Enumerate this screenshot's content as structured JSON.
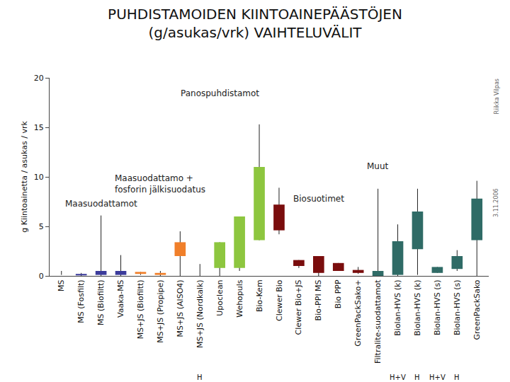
{
  "chart_data": {
    "type": "range_box",
    "title": "PUHDISTAMOIDEN KIINTOAINEPÄÄSTÖJEN\n(g/asukas/vrk) VAIHTELUVÄLIT",
    "y_label": "g Kiintoainetta / asukas / vrk",
    "categories": [
      "MS",
      "MS (Fosfilt)",
      "MS (Biofiltt)",
      "Vaaka-MS",
      "MS+JS (Biofiltt)",
      "MS+JS (Propipe)",
      "MS+JS (AlSO4)",
      "MS+JS (Nordkalk)",
      "Upoclean",
      "Wehopuls",
      "Bio-Kem",
      "Clewer Bio",
      "Clewer Bio+JS",
      "Bio-PPI MS",
      "Bio PPP",
      "GreenPackSako+",
      "Filtralite-suodattamot",
      "Biolan-HVS (k)",
      "Biolan-HVS (k)",
      "Biolan-HVS (s)",
      "Biolan-HVS (s)",
      "GreenPackSako"
    ],
    "notes": [
      null,
      null,
      null,
      null,
      null,
      null,
      null,
      "H",
      null,
      null,
      null,
      null,
      null,
      null,
      null,
      null,
      null,
      "H+V",
      "H",
      "H+V",
      "H",
      null
    ],
    "whisker_low": [
      0.1,
      0,
      0,
      0,
      0.1,
      0,
      0,
      0,
      0,
      0.5,
      3.6,
      4.2,
      0.8,
      0,
      0.5,
      0.2,
      0,
      0,
      0.1,
      0.3,
      0.5,
      0
    ],
    "whisker_high": [
      0.5,
      0.3,
      6.1,
      2.1,
      0.4,
      0.5,
      4.5,
      1.2,
      3.4,
      6,
      15.3,
      8.9,
      1.6,
      2,
      1.3,
      0.9,
      8.8,
      5.2,
      8.8,
      0.9,
      2.6,
      9.6
    ],
    "box_low": [
      null,
      0.05,
      0.1,
      0.1,
      0.2,
      0.1,
      2,
      null,
      0.8,
      0.8,
      3.6,
      4.6,
      1,
      0.3,
      0.5,
      0.3,
      0,
      0.1,
      2.7,
      0.3,
      0.7,
      3.6
    ],
    "box_high": [
      null,
      0.2,
      0.5,
      0.5,
      0.4,
      0.3,
      3.4,
      null,
      3.4,
      6,
      11,
      7.2,
      1.6,
      2,
      1.3,
      0.6,
      0.5,
      3.5,
      6.5,
      0.9,
      2,
      7.8
    ],
    "colors": [
      "#3b3b9b",
      "#3b3b9b",
      "#3b3b9b",
      "#3b3b9b",
      "#f07f2a",
      "#f07f2a",
      "#f07f2a",
      "#f07f2a",
      "#8dc63f",
      "#8dc63f",
      "#8dc63f",
      "#7a0d0d",
      "#7a0d0d",
      "#7a0d0d",
      "#7a0d0d",
      "#7a0d0d",
      "#2f6b66",
      "#2f6b66",
      "#2f6b66",
      "#2f6b66",
      "#2f6b66",
      "#2f6b66"
    ],
    "annotations": [
      {
        "text": "Maasuodattamot",
        "category": "MS (Biofiltt)",
        "y": 7.3
      },
      {
        "text": "Maasuodattamo +\nfosforin jälkisuodatus",
        "category": "MS+JS (Propipe)",
        "y": 9.3
      },
      {
        "text": "Panospuhdistamot",
        "category": "Upoclean",
        "y": 18.4
      },
      {
        "text": "Biosuotimet",
        "category": "Bio-PPI MS",
        "y": 7.8
      },
      {
        "text": "Muut",
        "category": "Filtralite-suodattamot",
        "y": 11.1
      }
    ],
    "side_notes": [
      "Riikka Vilpas",
      "3.11.2006"
    ],
    "ylim": [
      0,
      20
    ],
    "yticks": [
      0,
      5,
      10,
      15,
      20
    ],
    "grid": false
  }
}
